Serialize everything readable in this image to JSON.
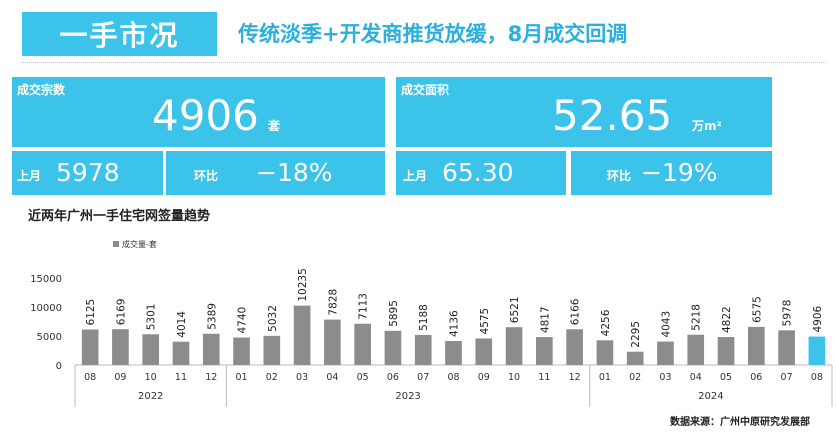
{
  "header": {
    "tab_title": "一手市况",
    "headline": "传统淡季+开发商推货放缓，8月成交回调"
  },
  "kpi": {
    "deals": {
      "label": "成交宗数",
      "value": "4906",
      "unit": "套",
      "prev_label": "上月",
      "prev_value": "5978",
      "mom_label": "环比",
      "mom_value": "−18%"
    },
    "area": {
      "label": "成交面积",
      "value": "52.65",
      "unit": "万m²",
      "prev_label": "上月",
      "prev_value": "65.30",
      "mom_label": "环比",
      "mom_value": "−19%"
    }
  },
  "chart_title": "近两年广州一手住宅网签量趋势",
  "source": "数据来源：广州中原研究发展部",
  "colors": {
    "accent": "#3cc3ea",
    "bar": "#8c8c8c",
    "highlight": "#3cc3ea"
  },
  "chart_data": {
    "type": "bar",
    "legend": "成交量-套",
    "legend_position": "top-left",
    "categories": [
      "08",
      "09",
      "10",
      "11",
      "12",
      "01",
      "02",
      "03",
      "04",
      "05",
      "06",
      "07",
      "08",
      "09",
      "10",
      "11",
      "12",
      "01",
      "02",
      "03",
      "04",
      "05",
      "06",
      "07",
      "08"
    ],
    "year_groups": [
      {
        "label": "2022",
        "count": 5
      },
      {
        "label": "2023",
        "count": 12
      },
      {
        "label": "2024",
        "count": 8
      }
    ],
    "values": [
      6125,
      6169,
      5301,
      4014,
      5389,
      4740,
      5032,
      10235,
      7828,
      7113,
      5895,
      5188,
      4136,
      4575,
      6521,
      4817,
      6166,
      4256,
      2295,
      4043,
      5218,
      4822,
      6575,
      5978,
      4906
    ],
    "yticks": [
      0,
      5000,
      10000,
      15000
    ],
    "ylim": [
      0,
      15000
    ],
    "highlight_last": true
  }
}
